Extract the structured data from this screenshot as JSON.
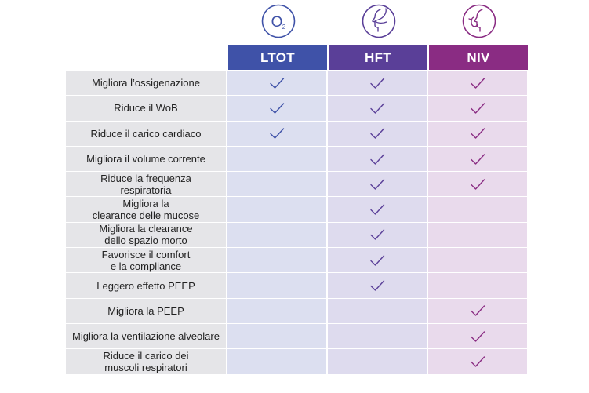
{
  "header": {
    "columns": [
      {
        "key": "ltot",
        "label": "LTOT",
        "icon": "o2-icon",
        "color": "#3f52a8"
      },
      {
        "key": "hft",
        "label": "HFT",
        "icon": "nasal-cannula-icon",
        "color": "#5a3f98"
      },
      {
        "key": "niv",
        "label": "NIV",
        "icon": "face-mask-icon",
        "color": "#8a2c83"
      }
    ],
    "o2_symbol": "O",
    "o2_subscript": "2"
  },
  "rows": [
    {
      "label": "Migliora l’ossigenazione",
      "ltot": true,
      "hft": true,
      "niv": true
    },
    {
      "label": "Riduce il WoB",
      "ltot": true,
      "hft": true,
      "niv": true
    },
    {
      "label": "Riduce il carico cardiaco",
      "ltot": true,
      "hft": true,
      "niv": true
    },
    {
      "label": "Migliora il volume corrente",
      "ltot": false,
      "hft": true,
      "niv": true
    },
    {
      "label": "Riduce la frequenza\nrespiratoria",
      "ltot": false,
      "hft": true,
      "niv": true
    },
    {
      "label": "Migliora la\nclearance delle mucose",
      "ltot": false,
      "hft": true,
      "niv": false
    },
    {
      "label": "Migliora la clearance\ndello spazio morto",
      "ltot": false,
      "hft": true,
      "niv": false
    },
    {
      "label": "Favorisce il comfort\ne la compliance",
      "ltot": false,
      "hft": true,
      "niv": false
    },
    {
      "label": "Leggero effetto PEEP",
      "ltot": false,
      "hft": true,
      "niv": false
    },
    {
      "label": "Migliora la PEEP",
      "ltot": false,
      "hft": false,
      "niv": true
    },
    {
      "label": "Migliora la ventilazione alveolare",
      "ltot": false,
      "hft": false,
      "niv": true
    },
    {
      "label": "Riduce il carico dei\nmuscoli respiratori",
      "ltot": false,
      "hft": false,
      "niv": true
    }
  ],
  "colors": {
    "check_ltot": "#3f52a8",
    "check_hft": "#5a3f98",
    "check_niv": "#8a2c83"
  }
}
